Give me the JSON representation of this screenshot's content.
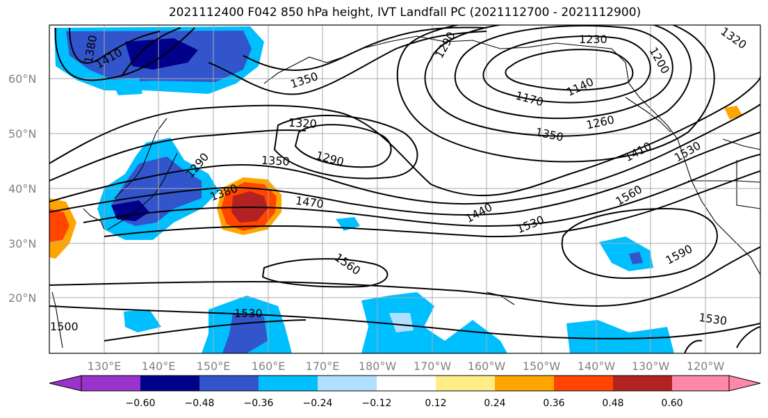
{
  "title": "2021112400 F042 850 hPa height, IVT Landfall PC (2021112700 - 2021112900)",
  "lat_labels": [
    "60°N",
    "50°N",
    "40°N",
    "30°N",
    "20°N"
  ],
  "lon_labels": [
    "130°E",
    "140°E",
    "150°E",
    "160°E",
    "170°E",
    "180°W",
    "170°W",
    "160°W",
    "150°W",
    "140°W",
    "130°W",
    "120°W"
  ],
  "contour_labels": [
    "1380",
    "1410",
    "1350",
    "1290",
    "1230",
    "1200",
    "1320",
    "1170",
    "1140",
    "1320",
    "1290",
    "1260",
    "1350",
    "1410",
    "1530",
    "1290",
    "1350",
    "1380",
    "1470",
    "1440",
    "1560",
    "1530",
    "1590",
    "1560",
    "1530",
    "1530",
    "1500"
  ],
  "colorbar": {
    "colors": [
      "#9933cc",
      "#000088",
      "#3355cc",
      "#00bfff",
      "#b0e0ff",
      "#ffffff",
      "#ffee88",
      "#ffa500",
      "#ff4500",
      "#b22222",
      "#ff88aa"
    ],
    "tick_labels": [
      "−0.60",
      "−0.48",
      "−0.36",
      "−0.24",
      "−0.12",
      "0.12",
      "0.24",
      "0.36",
      "0.48",
      "0.60"
    ]
  }
}
